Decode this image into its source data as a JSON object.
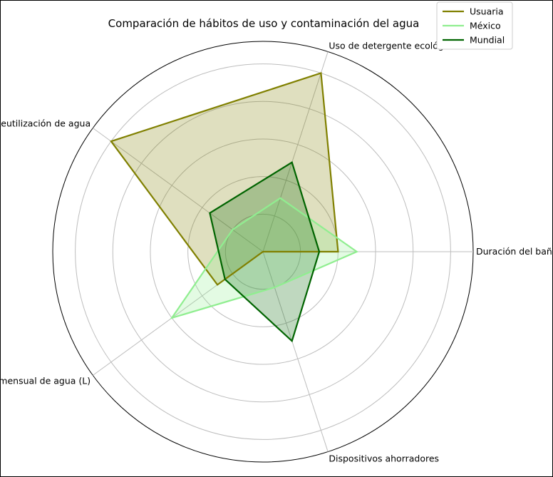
{
  "chart_data": {
    "type": "radar",
    "title": "Comparación de hábitos de uso y contaminación del agua",
    "axes": [
      "Duración del baño (min)",
      "Uso de detergente ecológico",
      "Reutilización de agua",
      "Consumo mensual de agua (L)",
      "Dispositivos ahorradores"
    ],
    "rlim": [
      0,
      1.12
    ],
    "grid": true,
    "legend_position": "top-right",
    "series": [
      {
        "name": "Usuaria",
        "values": [
          0.4,
          1.0,
          1.0,
          0.3,
          0.0
        ],
        "color": "#808000",
        "fill_opacity": 0.25
      },
      {
        "name": "México",
        "values": [
          0.5,
          0.3,
          0.2,
          0.6,
          0.2
        ],
        "color": "#90ee90",
        "fill_opacity": 0.25
      },
      {
        "name": "Mundial",
        "values": [
          0.3,
          0.5,
          0.35,
          0.25,
          0.5
        ],
        "color": "#006400",
        "fill_opacity": 0.25
      }
    ]
  }
}
